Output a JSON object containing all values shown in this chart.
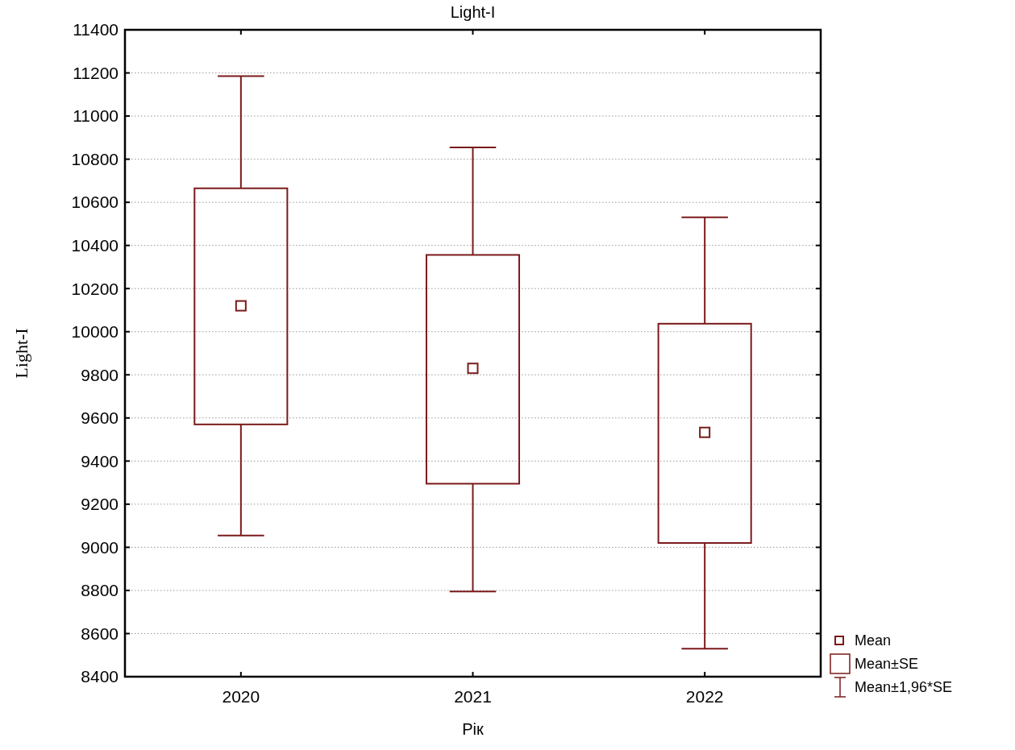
{
  "chart_data": {
    "type": "box",
    "title": "Light-I",
    "xlabel": "Рік",
    "ylabel": "Light-I",
    "categories": [
      "2020",
      "2021",
      "2022"
    ],
    "color": "#7b1a1a",
    "boxes": [
      {
        "low": 9055,
        "q1": 9570,
        "q3": 10665,
        "high": 11185,
        "mean": 10120
      },
      {
        "low": 8795,
        "q1": 9295,
        "q3": 10356,
        "high": 10855,
        "mean": 9830
      },
      {
        "low": 8530,
        "q1": 9020,
        "q3": 10037,
        "high": 10530,
        "mean": 9533
      }
    ],
    "ylim": [
      8400,
      11400
    ],
    "yticks": [
      8400,
      8600,
      8800,
      9000,
      9200,
      9400,
      9600,
      9800,
      10000,
      10200,
      10400,
      10600,
      10800,
      11000,
      11200,
      11400
    ],
    "grid": "y",
    "annotations": [
      "Mean",
      "Mean±SE",
      "Mean±1,96*SE"
    ]
  }
}
